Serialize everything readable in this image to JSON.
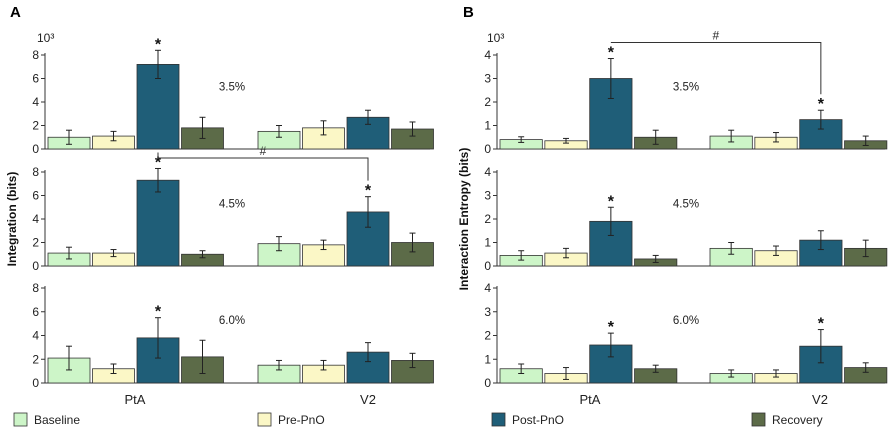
{
  "colors": {
    "Baseline": "#cdf5c8",
    "Pre-PnO": "#fbf7c6",
    "Post-PnO": "#1f5e78",
    "Recovery": "#5c6b48",
    "axis": "#333333",
    "error": "#222222"
  },
  "legend": [
    "Baseline",
    "Pre-PnO",
    "Post-PnO",
    "Recovery"
  ],
  "chart_data": [
    {
      "panel": "A",
      "type": "bar",
      "ylabel": "Integration (bits)",
      "y_multiplier_label": "10³",
      "categories": [
        "PtA",
        "V2"
      ],
      "subplots": [
        {
          "condition": "3.5%",
          "ylim": [
            0,
            8
          ],
          "yticks": [
            0,
            2,
            4,
            6,
            8
          ],
          "series": [
            {
              "name": "Baseline",
              "values": [
                1.0,
                1.5
              ],
              "errors": [
                0.6,
                0.5
              ]
            },
            {
              "name": "Pre-PnO",
              "values": [
                1.1,
                1.8
              ],
              "errors": [
                0.4,
                0.6
              ]
            },
            {
              "name": "Post-PnO",
              "values": [
                7.2,
                2.7
              ],
              "errors": [
                1.2,
                0.6
              ]
            },
            {
              "name": "Recovery",
              "values": [
                1.8,
                1.7
              ],
              "errors": [
                0.9,
                0.6
              ]
            }
          ],
          "stars": [
            {
              "series": "Post-PnO",
              "category": "PtA",
              "text": "*"
            }
          ],
          "brackets": []
        },
        {
          "condition": "4.5%",
          "ylim": [
            0,
            8
          ],
          "yticks": [
            0,
            2,
            4,
            6,
            8
          ],
          "series": [
            {
              "name": "Baseline",
              "values": [
                1.1,
                1.9
              ],
              "errors": [
                0.5,
                0.6
              ]
            },
            {
              "name": "Pre-PnO",
              "values": [
                1.1,
                1.8
              ],
              "errors": [
                0.3,
                0.4
              ]
            },
            {
              "name": "Post-PnO",
              "values": [
                7.3,
                4.6
              ],
              "errors": [
                1.0,
                1.3
              ]
            },
            {
              "name": "Recovery",
              "values": [
                1.0,
                2.0
              ],
              "errors": [
                0.3,
                0.8
              ]
            }
          ],
          "stars": [
            {
              "series": "Post-PnO",
              "category": "PtA",
              "text": "*"
            },
            {
              "series": "Post-PnO",
              "category": "V2",
              "text": "*"
            }
          ],
          "brackets": [
            {
              "from_category": "PtA",
              "to_category": "V2",
              "series": "Post-PnO",
              "text": "#"
            }
          ]
        },
        {
          "condition": "6.0%",
          "ylim": [
            0,
            8
          ],
          "yticks": [
            0,
            2,
            4,
            6,
            8
          ],
          "series": [
            {
              "name": "Baseline",
              "values": [
                2.1,
                1.5
              ],
              "errors": [
                1.0,
                0.4
              ]
            },
            {
              "name": "Pre-PnO",
              "values": [
                1.2,
                1.5
              ],
              "errors": [
                0.4,
                0.4
              ]
            },
            {
              "name": "Post-PnO",
              "values": [
                3.8,
                2.6
              ],
              "errors": [
                1.7,
                0.8
              ]
            },
            {
              "name": "Recovery",
              "values": [
                2.2,
                1.9
              ],
              "errors": [
                1.4,
                0.6
              ]
            }
          ],
          "stars": [
            {
              "series": "Post-PnO",
              "category": "PtA",
              "text": "*"
            }
          ],
          "brackets": []
        }
      ]
    },
    {
      "panel": "B",
      "type": "bar",
      "ylabel": "Interaction Entropy (bits)",
      "y_multiplier_label": "10³",
      "categories": [
        "PtA",
        "V2"
      ],
      "subplots": [
        {
          "condition": "3.5%",
          "ylim": [
            0,
            4
          ],
          "yticks": [
            0,
            1,
            2,
            3,
            4
          ],
          "series": [
            {
              "name": "Baseline",
              "values": [
                0.4,
                0.55
              ],
              "errors": [
                0.12,
                0.25
              ]
            },
            {
              "name": "Pre-PnO",
              "values": [
                0.35,
                0.5
              ],
              "errors": [
                0.1,
                0.2
              ]
            },
            {
              "name": "Post-PnO",
              "values": [
                3.0,
                1.25
              ],
              "errors": [
                0.85,
                0.4
              ]
            },
            {
              "name": "Recovery",
              "values": [
                0.5,
                0.35
              ],
              "errors": [
                0.3,
                0.2
              ]
            }
          ],
          "stars": [
            {
              "series": "Post-PnO",
              "category": "PtA",
              "text": "*"
            },
            {
              "series": "Post-PnO",
              "category": "V2",
              "text": "*"
            }
          ],
          "brackets": [
            {
              "from_category": "PtA",
              "to_category": "V2",
              "series": "Post-PnO",
              "text": "#"
            }
          ]
        },
        {
          "condition": "4.5%",
          "ylim": [
            0,
            4
          ],
          "yticks": [
            0,
            1,
            2,
            3,
            4
          ],
          "series": [
            {
              "name": "Baseline",
              "values": [
                0.45,
                0.75
              ],
              "errors": [
                0.2,
                0.25
              ]
            },
            {
              "name": "Pre-PnO",
              "values": [
                0.55,
                0.65
              ],
              "errors": [
                0.2,
                0.2
              ]
            },
            {
              "name": "Post-PnO",
              "values": [
                1.9,
                1.1
              ],
              "errors": [
                0.6,
                0.4
              ]
            },
            {
              "name": "Recovery",
              "values": [
                0.3,
                0.75
              ],
              "errors": [
                0.15,
                0.35
              ]
            }
          ],
          "stars": [
            {
              "series": "Post-PnO",
              "category": "PtA",
              "text": "*"
            }
          ],
          "brackets": []
        },
        {
          "condition": "6.0%",
          "ylim": [
            0,
            4
          ],
          "yticks": [
            0,
            1,
            2,
            3,
            4
          ],
          "series": [
            {
              "name": "Baseline",
              "values": [
                0.6,
                0.4
              ],
              "errors": [
                0.2,
                0.15
              ]
            },
            {
              "name": "Pre-PnO",
              "values": [
                0.4,
                0.4
              ],
              "errors": [
                0.25,
                0.15
              ]
            },
            {
              "name": "Post-PnO",
              "values": [
                1.6,
                1.55
              ],
              "errors": [
                0.5,
                0.7
              ]
            },
            {
              "name": "Recovery",
              "values": [
                0.6,
                0.65
              ],
              "errors": [
                0.15,
                0.2
              ]
            }
          ],
          "stars": [
            {
              "series": "Post-PnO",
              "category": "PtA",
              "text": "*"
            },
            {
              "series": "Post-PnO",
              "category": "V2",
              "text": "*"
            }
          ],
          "brackets": []
        }
      ]
    }
  ]
}
